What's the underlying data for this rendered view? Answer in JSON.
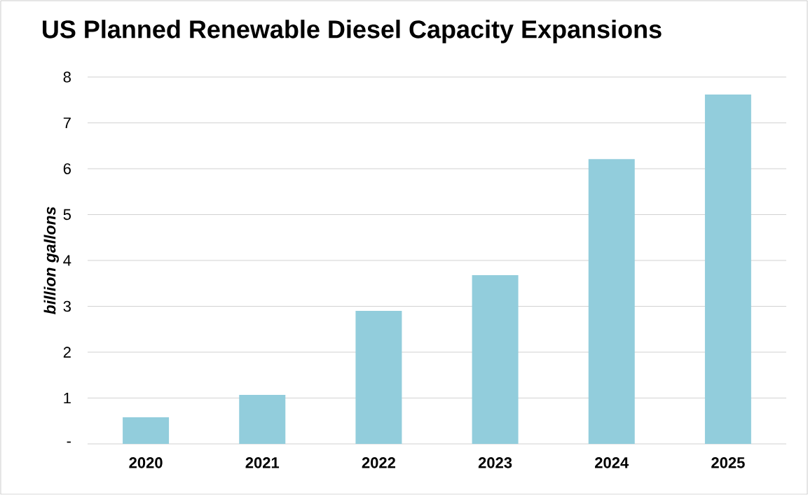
{
  "chart_data": {
    "type": "bar",
    "title": "US Planned Renewable Diesel Capacity Expansions",
    "ylabel": "billion gallons",
    "categories": [
      "2020",
      "2021",
      "2022",
      "2023",
      "2024",
      "2025"
    ],
    "values": [
      0.58,
      1.07,
      2.9,
      3.68,
      6.21,
      7.62
    ],
    "color": "#92cddc",
    "ylim": [
      0,
      8
    ],
    "yticks": [
      {
        "value": 0,
        "label": "-"
      },
      1,
      2,
      3,
      4,
      5,
      6,
      7,
      8
    ],
    "grid": "y"
  }
}
